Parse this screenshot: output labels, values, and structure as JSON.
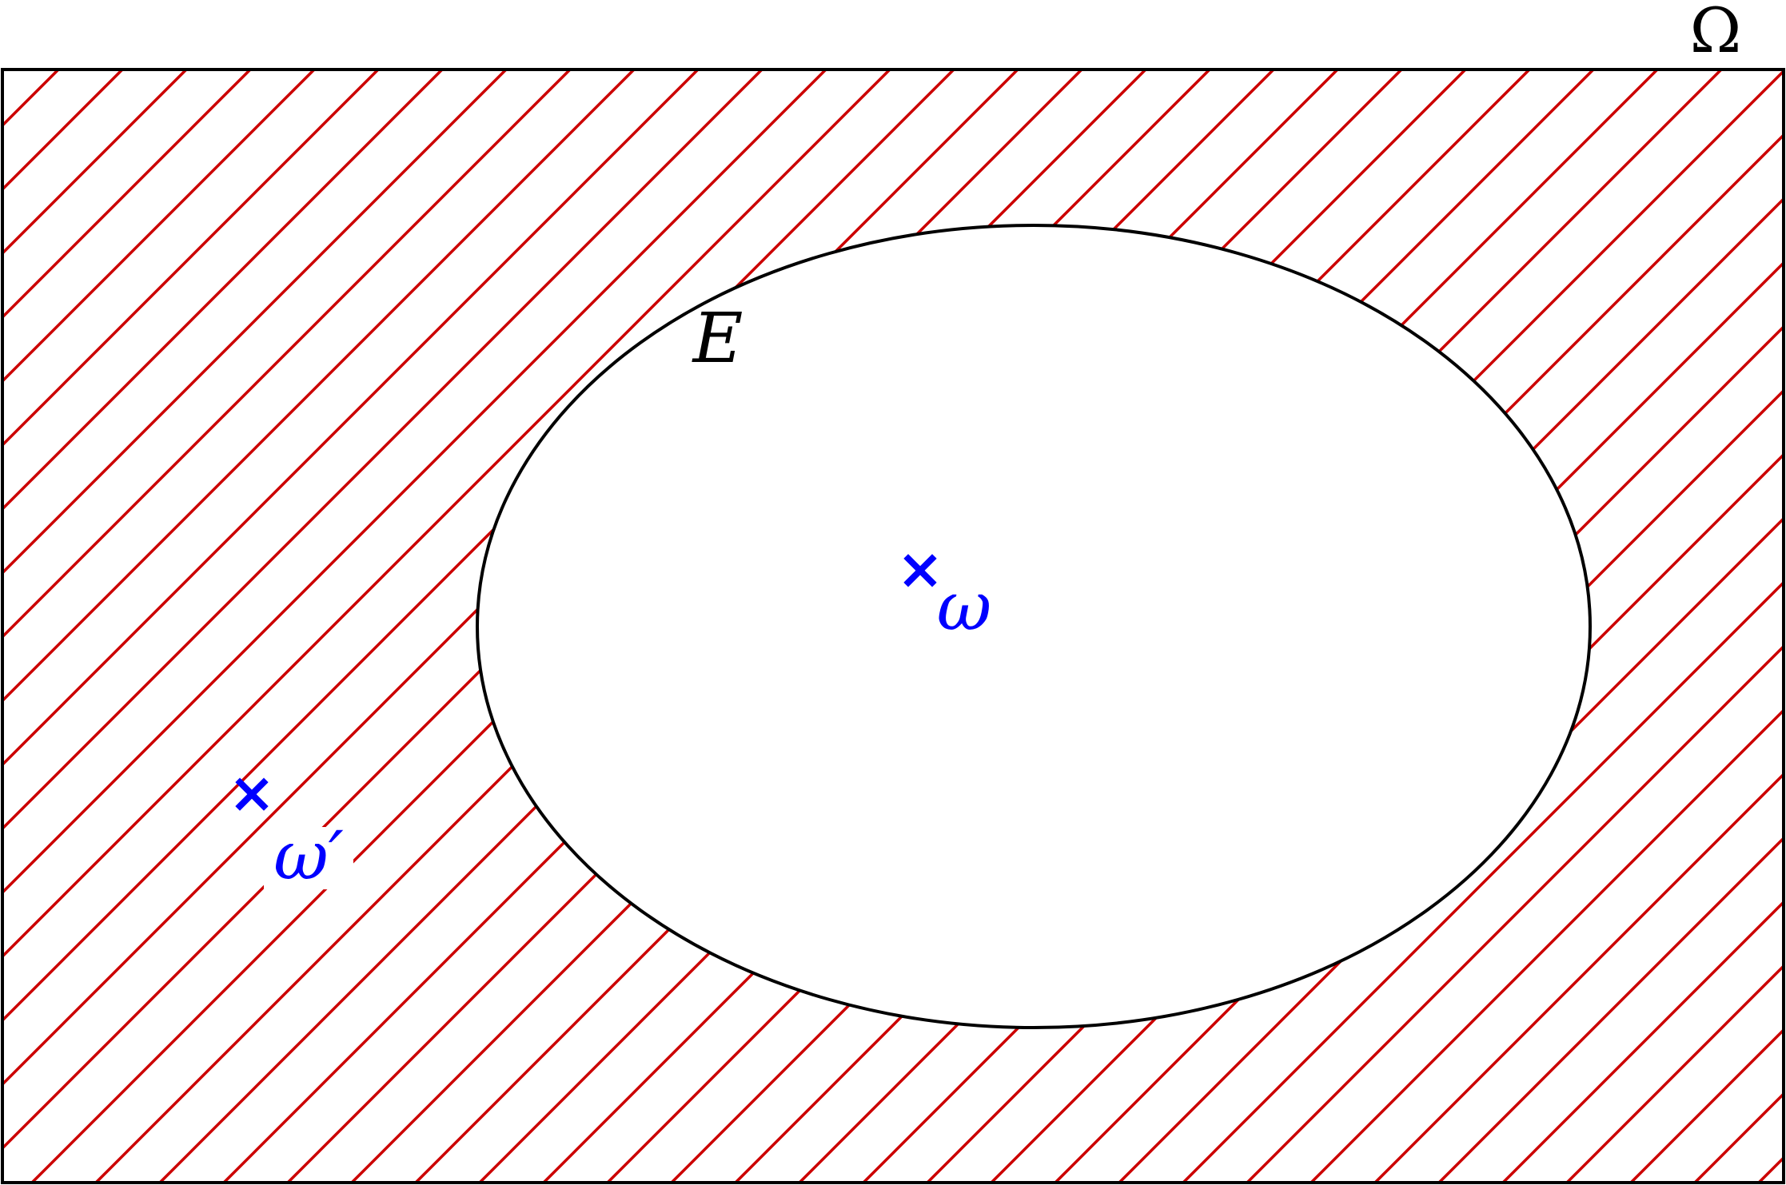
{
  "diagram": {
    "universe_label": "Ω",
    "event_label": "E",
    "point_inside_label": "ω",
    "point_outside_label": "ω′",
    "point_marker": "×",
    "colors": {
      "hatch": "#cc0000",
      "outline": "#000000",
      "points": "#0000ff",
      "background": "#ffffff"
    },
    "hatched_region": "complement-of-E"
  }
}
